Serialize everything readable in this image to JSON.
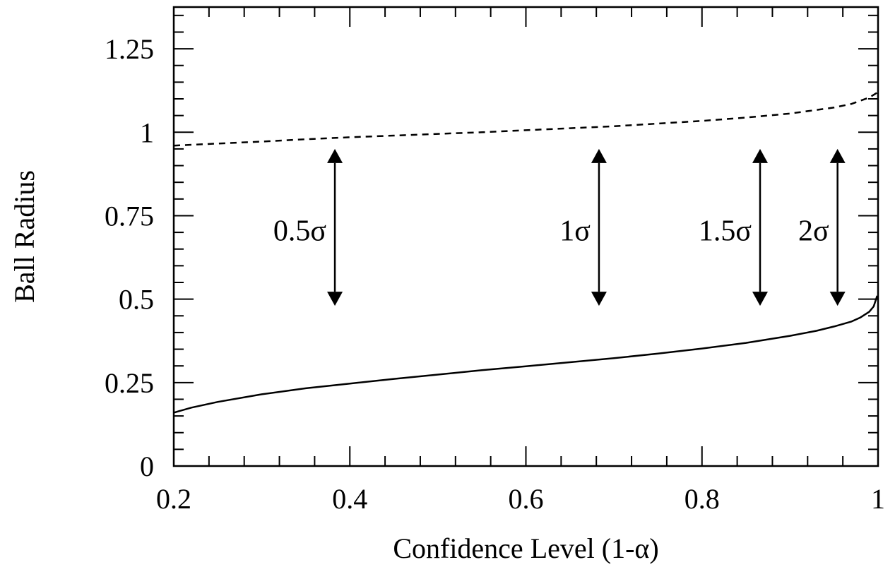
{
  "chart_data": {
    "type": "line",
    "title": "",
    "xlabel": "Confidence Level (1-α)",
    "ylabel": "Ball Radius",
    "xlim": [
      0.2,
      1.0
    ],
    "ylim": [
      0,
      1.375
    ],
    "x_ticks": [
      {
        "value": 0.2,
        "label": "0.2"
      },
      {
        "value": 0.4,
        "label": "0.4"
      },
      {
        "value": 0.6,
        "label": "0.6"
      },
      {
        "value": 0.8,
        "label": "0.8"
      },
      {
        "value": 1.0,
        "label": "1"
      }
    ],
    "y_ticks": [
      {
        "value": 0,
        "label": "0"
      },
      {
        "value": 0.25,
        "label": "0.25"
      },
      {
        "value": 0.5,
        "label": "0.5"
      },
      {
        "value": 0.75,
        "label": "0.75"
      },
      {
        "value": 1.0,
        "label": "1"
      },
      {
        "value": 1.25,
        "label": "1.25"
      }
    ],
    "x_minor_step": 0.04,
    "y_minor_step": 0.05,
    "grid": false,
    "series": [
      {
        "style": "dashed",
        "x": [
          0.2,
          0.25,
          0.3,
          0.35,
          0.4,
          0.45,
          0.5,
          0.55,
          0.6,
          0.65,
          0.7,
          0.75,
          0.8,
          0.85,
          0.9,
          0.95,
          0.97,
          0.99,
          1.0
        ],
        "y": [
          0.96,
          0.966,
          0.972,
          0.979,
          0.985,
          0.99,
          0.995,
          1.0,
          1.006,
          1.012,
          1.018,
          1.026,
          1.034,
          1.044,
          1.056,
          1.074,
          1.085,
          1.104,
          1.12
        ]
      },
      {
        "style": "solid",
        "x": [
          0.2,
          0.22,
          0.25,
          0.3,
          0.35,
          0.4,
          0.45,
          0.5,
          0.55,
          0.6,
          0.65,
          0.7,
          0.75,
          0.8,
          0.85,
          0.9,
          0.93,
          0.95,
          0.97,
          0.98,
          0.99,
          0.995,
          0.999
        ],
        "y": [
          0.16,
          0.175,
          0.192,
          0.215,
          0.233,
          0.247,
          0.261,
          0.274,
          0.287,
          0.299,
          0.311,
          0.323,
          0.337,
          0.352,
          0.369,
          0.39,
          0.405,
          0.418,
          0.433,
          0.445,
          0.462,
          0.478,
          0.51
        ]
      }
    ],
    "annotations": [
      {
        "label": "0.5σ",
        "x": 0.383,
        "y_top": 0.95,
        "y_bottom": 0.48,
        "text_side": "left"
      },
      {
        "label": "1σ",
        "x": 0.683,
        "y_top": 0.95,
        "y_bottom": 0.48,
        "text_side": "left"
      },
      {
        "label": "1.5σ",
        "x": 0.866,
        "y_top": 0.95,
        "y_bottom": 0.48,
        "text_side": "left"
      },
      {
        "label": "2σ",
        "x": 0.954,
        "y_top": 0.95,
        "y_bottom": 0.48,
        "text_side": "left"
      }
    ],
    "annotation_label_y": 0.705
  }
}
